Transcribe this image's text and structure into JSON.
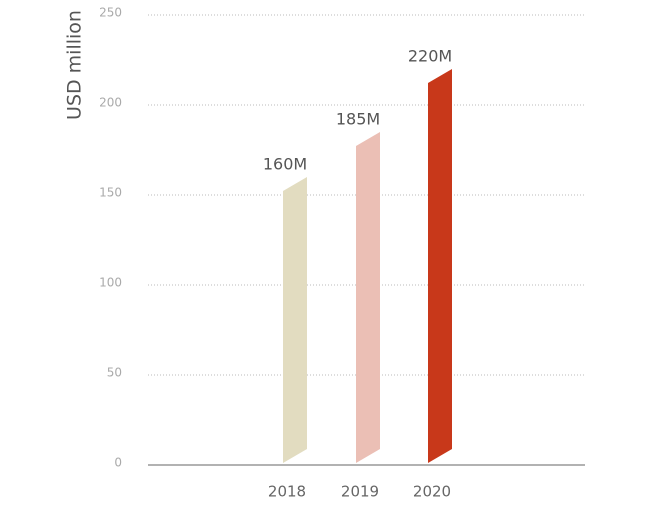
{
  "chart_data": {
    "type": "bar",
    "y_label": "USD million",
    "categories": [
      "2018",
      "2019",
      "2020"
    ],
    "values": [
      160,
      185,
      220
    ],
    "value_labels": [
      "160M",
      "185M",
      "220M"
    ],
    "colors": [
      "#e2dcc0",
      "#ebbfb5",
      "#c8381a"
    ],
    "ylim": [
      0,
      250
    ],
    "yticks": [
      0,
      50,
      100,
      150,
      200,
      250
    ],
    "grid": true
  }
}
